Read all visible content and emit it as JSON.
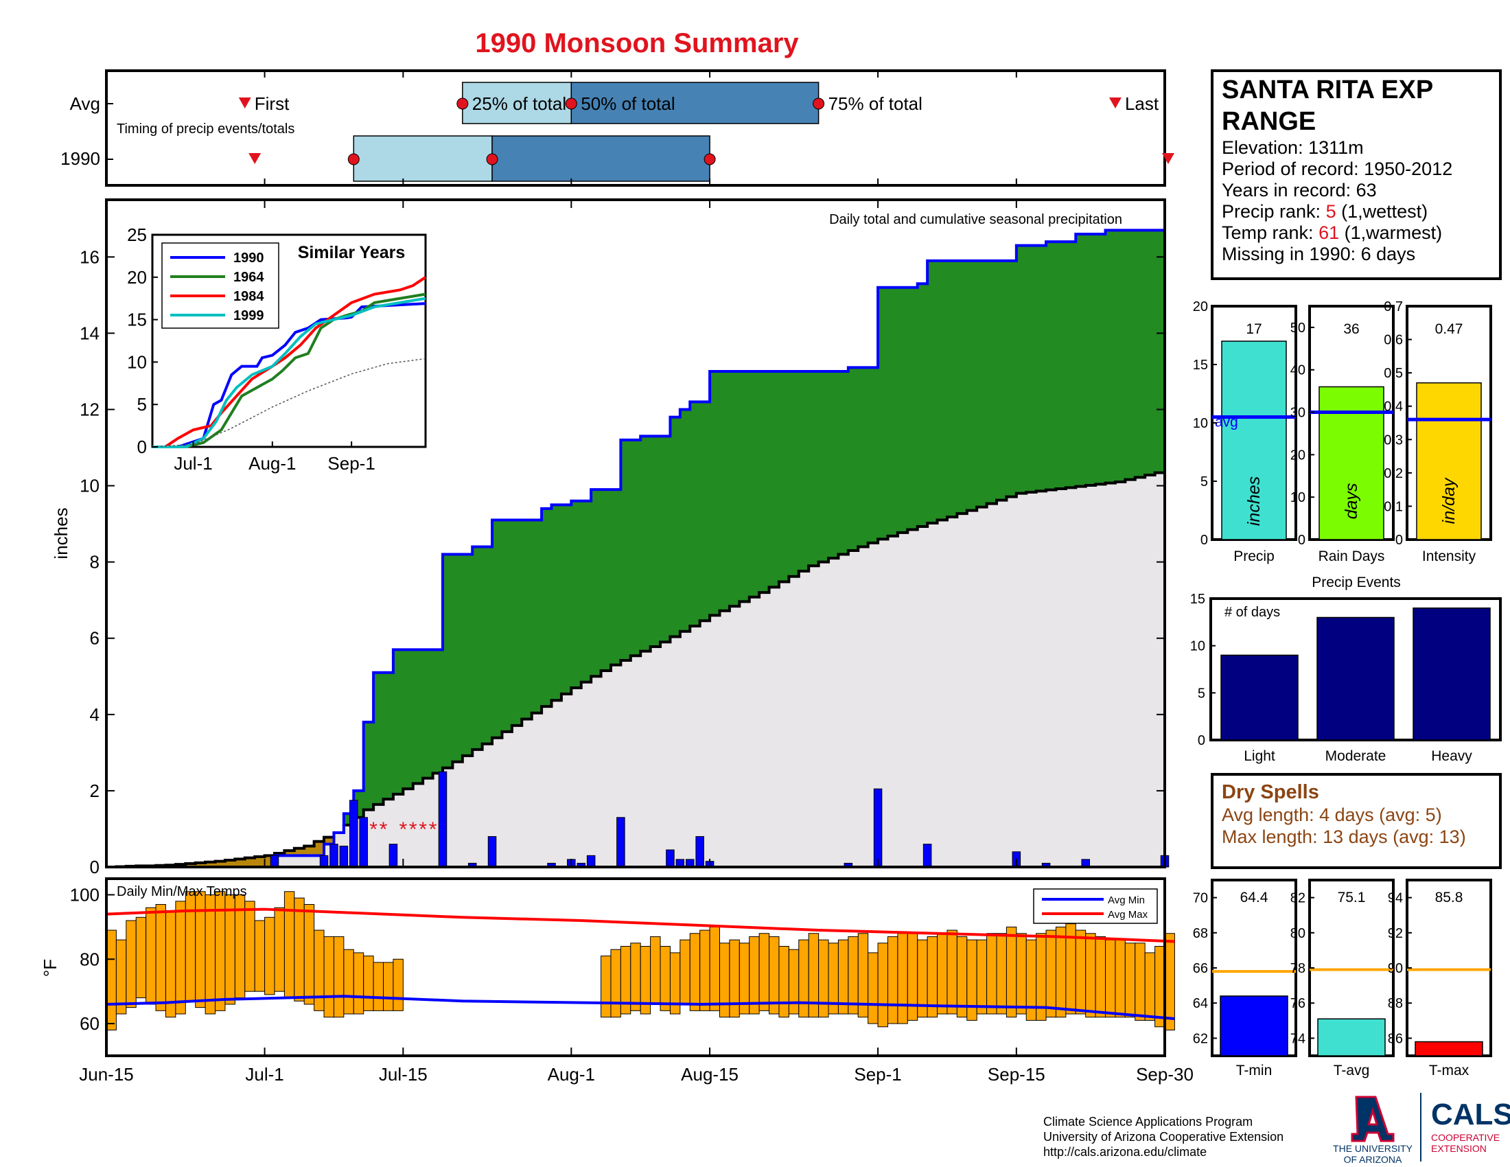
{
  "title": "1990 Monsoon Summary",
  "timing": {
    "row_labels": [
      "Avg",
      "1990"
    ],
    "subtitle": "Timing of precip events/totals",
    "avg": {
      "first": "2023-06-29",
      "q25": "2023-07-21",
      "q50": "2023-08-01",
      "q75": "2023-08-26",
      "last": "2023-09-25"
    },
    "y1990": {
      "first": "2023-06-30",
      "q25": "2023-07-10",
      "q50": "2023-07-24",
      "q75": "2023-08-15",
      "last": "2023-10-01"
    },
    "labels": {
      "first": "First",
      "q25": "25% of total",
      "q50": "50% of total",
      "q75": "75% of total",
      "last": "Last"
    },
    "colors": {
      "light": "#add8e6",
      "dark": "#4682b4",
      "marker": "#e0141e"
    }
  },
  "station": {
    "name_line1": "SANTA RITA EXP",
    "name_line2": "RANGE",
    "elevation": "Elevation: 1311m",
    "period": "Period of record: 1950-2012",
    "years": "Years in record: 63",
    "precip_rank_prefix": "Precip rank: ",
    "precip_rank_value": "5",
    "precip_rank_suffix": " (1,wettest)",
    "temp_rank_prefix": "Temp rank: ",
    "temp_rank_value": "61",
    "temp_rank_suffix": " (1,warmest)",
    "missing": "Missing in 1990: 6 days"
  },
  "main_chart": {
    "annotation": "Daily total and cumulative seasonal precipitation",
    "ylabel": "inches",
    "ylim": [
      0,
      17.5
    ],
    "yticks": [
      0,
      2,
      4,
      6,
      8,
      10,
      12,
      14,
      16
    ],
    "missing_marker": "*",
    "colors": {
      "cumulative_1990": "#0000ff",
      "above_avg_fill": "#228b22",
      "below_avg_fill": "#b8860b",
      "avg_fill": "#e8e6e8",
      "daily_bar": "#0000ff",
      "missing": "#e0141e"
    }
  },
  "chart_data": {
    "type": "area",
    "x_range": [
      "Jun-15",
      "Sep-30"
    ],
    "x_tick_labels": [
      "Jun-15",
      "Jul-1",
      "Jul-15",
      "Aug-1",
      "Aug-15",
      "Sep-1",
      "Sep-15",
      "Sep-30"
    ],
    "cumulative_1990": [
      {
        "x": "Jul-1",
        "y": 0.0
      },
      {
        "x": "Jul-2",
        "y": 0.3
      },
      {
        "x": "Jul-7",
        "y": 0.6
      },
      {
        "x": "Jul-8",
        "y": 0.9
      },
      {
        "x": "Jul-9",
        "y": 1.4
      },
      {
        "x": "Jul-10",
        "y": 2.0
      },
      {
        "x": "Jul-11",
        "y": 3.8
      },
      {
        "x": "Jul-12",
        "y": 5.1
      },
      {
        "x": "Jul-14",
        "y": 5.7
      },
      {
        "x": "Jul-19",
        "y": 8.2
      },
      {
        "x": "Jul-22",
        "y": 8.4
      },
      {
        "x": "Jul-24",
        "y": 9.1
      },
      {
        "x": "Jul-29",
        "y": 9.4
      },
      {
        "x": "Jul-30",
        "y": 9.5
      },
      {
        "x": "Aug-1",
        "y": 9.6
      },
      {
        "x": "Aug-3",
        "y": 9.9
      },
      {
        "x": "Aug-6",
        "y": 11.2
      },
      {
        "x": "Aug-8",
        "y": 11.3
      },
      {
        "x": "Aug-11",
        "y": 11.8
      },
      {
        "x": "Aug-12",
        "y": 12.0
      },
      {
        "x": "Aug-13",
        "y": 12.2
      },
      {
        "x": "Aug-15",
        "y": 13.0
      },
      {
        "x": "Aug-29",
        "y": 13.1
      },
      {
        "x": "Aug-30",
        "y": 13.1
      },
      {
        "x": "Sep-1",
        "y": 15.2
      },
      {
        "x": "Sep-5",
        "y": 15.3
      },
      {
        "x": "Sep-6",
        "y": 15.9
      },
      {
        "x": "Sep-15",
        "y": 16.3
      },
      {
        "x": "Sep-18",
        "y": 16.4
      },
      {
        "x": "Sep-21",
        "y": 16.6
      },
      {
        "x": "Sep-24",
        "y": 16.7
      },
      {
        "x": "Sep-30",
        "y": 16.9
      }
    ],
    "cumulative_average": [
      {
        "x": "Jun-15",
        "y": 0.0
      },
      {
        "x": "Jun-21",
        "y": 0.05
      },
      {
        "x": "Jun-26",
        "y": 0.15
      },
      {
        "x": "Jul-1",
        "y": 0.3
      },
      {
        "x": "Jul-5",
        "y": 0.55
      },
      {
        "x": "Jul-8",
        "y": 0.9
      },
      {
        "x": "Jul-11",
        "y": 1.5
      },
      {
        "x": "Jul-15",
        "y": 2.05
      },
      {
        "x": "Jul-19",
        "y": 2.6
      },
      {
        "x": "Jul-25",
        "y": 3.55
      },
      {
        "x": "Aug-1",
        "y": 4.7
      },
      {
        "x": "Aug-5",
        "y": 5.3
      },
      {
        "x": "Aug-10",
        "y": 5.9
      },
      {
        "x": "Aug-15",
        "y": 6.6
      },
      {
        "x": "Aug-20",
        "y": 7.2
      },
      {
        "x": "Aug-25",
        "y": 7.9
      },
      {
        "x": "Sep-1",
        "y": 8.6
      },
      {
        "x": "Sep-10",
        "y": 9.35
      },
      {
        "x": "Sep-15",
        "y": 9.8
      },
      {
        "x": "Sep-20",
        "y": 9.95
      },
      {
        "x": "Sep-25",
        "y": 10.1
      },
      {
        "x": "Sep-30",
        "y": 10.4
      }
    ],
    "daily_precip": [
      {
        "x": "Jul-2",
        "y": 0.3
      },
      {
        "x": "Jul-7",
        "y": 0.3
      },
      {
        "x": "Jul-8",
        "y": 0.6
      },
      {
        "x": "Jul-9",
        "y": 0.55
      },
      {
        "x": "Jul-10",
        "y": 1.75
      },
      {
        "x": "Jul-11",
        "y": 1.3
      },
      {
        "x": "Jul-14",
        "y": 0.6
      },
      {
        "x": "Jul-19",
        "y": 2.5
      },
      {
        "x": "Jul-22",
        "y": 0.1
      },
      {
        "x": "Jul-24",
        "y": 0.8
      },
      {
        "x": "Jul-30",
        "y": 0.1
      },
      {
        "x": "Aug-1",
        "y": 0.2
      },
      {
        "x": "Aug-2",
        "y": 0.1
      },
      {
        "x": "Aug-3",
        "y": 0.3
      },
      {
        "x": "Aug-6",
        "y": 1.3
      },
      {
        "x": "Aug-11",
        "y": 0.45
      },
      {
        "x": "Aug-12",
        "y": 0.2
      },
      {
        "x": "Aug-13",
        "y": 0.2
      },
      {
        "x": "Aug-14",
        "y": 0.8
      },
      {
        "x": "Aug-15",
        "y": 0.15
      },
      {
        "x": "Aug-29",
        "y": 0.1
      },
      {
        "x": "Sep-1",
        "y": 2.05
      },
      {
        "x": "Sep-6",
        "y": 0.6
      },
      {
        "x": "Sep-15",
        "y": 0.4
      },
      {
        "x": "Sep-18",
        "y": 0.1
      },
      {
        "x": "Sep-22",
        "y": 0.2
      },
      {
        "x": "Sep-30",
        "y": 0.3
      }
    ],
    "missing_days": [
      "Jul-12",
      "Jul-13",
      "Jul-15",
      "Jul-16",
      "Jul-17",
      "Jul-18"
    ]
  },
  "similar_years": {
    "title": "Similar Years",
    "xticks": [
      "Jul-1",
      "Aug-1",
      "Sep-1"
    ],
    "yticks": [
      0,
      5,
      10,
      15,
      20,
      25
    ],
    "ylim": [
      0,
      25
    ],
    "legend": [
      {
        "name": "1990",
        "color": "#0000ff"
      },
      {
        "name": "1964",
        "color": "#1f7f1f"
      },
      {
        "name": "1984",
        "color": "#ff0000"
      },
      {
        "name": "1999",
        "color": "#00bfbf"
      }
    ],
    "series": [
      {
        "name": "1990",
        "points": [
          [
            "Jun-15",
            0
          ],
          [
            "Jun-25",
            0
          ],
          [
            "Jul-5",
            1
          ],
          [
            "Jul-9",
            5
          ],
          [
            "Jul-12",
            5.5
          ],
          [
            "Jul-16",
            8.5
          ],
          [
            "Jul-20",
            9.5
          ],
          [
            "Jul-26",
            9.5
          ],
          [
            "Jul-28",
            10.5
          ],
          [
            "Aug-1",
            10.8
          ],
          [
            "Aug-6",
            12
          ],
          [
            "Aug-10",
            13.5
          ],
          [
            "Aug-15",
            14
          ],
          [
            "Aug-20",
            15
          ],
          [
            "Aug-30",
            15.2
          ],
          [
            "Sep-1",
            15.3
          ],
          [
            "Sep-5",
            16.5
          ],
          [
            "Sep-30",
            16.9
          ]
        ]
      },
      {
        "name": "1964",
        "points": [
          [
            "Jun-15",
            0
          ],
          [
            "Jun-28",
            0
          ],
          [
            "Jul-5",
            0.5
          ],
          [
            "Jul-12",
            2
          ],
          [
            "Jul-16",
            4
          ],
          [
            "Jul-20",
            6
          ],
          [
            "Jul-26",
            7
          ],
          [
            "Aug-1",
            8
          ],
          [
            "Aug-5",
            9
          ],
          [
            "Aug-10",
            10.5
          ],
          [
            "Aug-15",
            11
          ],
          [
            "Aug-20",
            14
          ],
          [
            "Aug-25",
            15
          ],
          [
            "Aug-30",
            15.5
          ],
          [
            "Sep-5",
            16
          ],
          [
            "Sep-10",
            17
          ],
          [
            "Sep-30",
            18
          ]
        ]
      },
      {
        "name": "1984",
        "points": [
          [
            "Jun-15",
            0
          ],
          [
            "Jun-20",
            0
          ],
          [
            "Jun-25",
            1
          ],
          [
            "Jul-1",
            2
          ],
          [
            "Jul-8",
            2.5
          ],
          [
            "Jul-12",
            4
          ],
          [
            "Jul-18",
            6
          ],
          [
            "Jul-24",
            8
          ],
          [
            "Aug-1",
            9.5
          ],
          [
            "Aug-6",
            10.5
          ],
          [
            "Aug-12",
            12
          ],
          [
            "Aug-18",
            14
          ],
          [
            "Aug-25",
            15.5
          ],
          [
            "Sep-1",
            17
          ],
          [
            "Sep-10",
            18
          ],
          [
            "Sep-20",
            18.5
          ],
          [
            "Sep-25",
            19
          ],
          [
            "Sep-30",
            20
          ]
        ]
      },
      {
        "name": "1999",
        "points": [
          [
            "Jun-15",
            0
          ],
          [
            "Jun-28",
            0
          ],
          [
            "Jul-5",
            1
          ],
          [
            "Jul-10",
            3
          ],
          [
            "Jul-14",
            5.5
          ],
          [
            "Jul-18",
            7
          ],
          [
            "Jul-24",
            8.5
          ],
          [
            "Aug-1",
            9.5
          ],
          [
            "Aug-6",
            11
          ],
          [
            "Aug-12",
            13
          ],
          [
            "Aug-18",
            14.5
          ],
          [
            "Aug-25",
            15
          ],
          [
            "Sep-1",
            15.5
          ],
          [
            "Sep-10",
            16.5
          ],
          [
            "Sep-20",
            17
          ],
          [
            "Sep-30",
            17.5
          ]
        ]
      },
      {
        "name": "average",
        "points": [
          [
            "Jun-15",
            0
          ],
          [
            "Jul-1",
            0.3
          ],
          [
            "Jul-15",
            2.05
          ],
          [
            "Aug-1",
            4.7
          ],
          [
            "Aug-15",
            6.6
          ],
          [
            "Sep-1",
            8.6
          ],
          [
            "Sep-15",
            9.8
          ],
          [
            "Sep-30",
            10.4
          ]
        ]
      }
    ]
  },
  "summary_bars": [
    {
      "value_label": "17",
      "value": 17,
      "avg": 10.5,
      "ymax": 20,
      "yticks": [
        0,
        5,
        10,
        15,
        20
      ],
      "unit": "inches",
      "xlabel": "Precip",
      "color": "#40e0d0",
      "avg_label": "avg"
    },
    {
      "value_label": "36",
      "value": 36,
      "avg": 30,
      "ymax": 55,
      "yticks": [
        0,
        10,
        20,
        30,
        40,
        50
      ],
      "unit": "days",
      "xlabel": "Rain Days",
      "color": "#7cfc00",
      "avg_label": ""
    },
    {
      "value_label": "0.47",
      "value": 0.47,
      "avg": 0.36,
      "ymax": 0.7,
      "yticks": [
        0,
        0.1,
        0.2,
        0.3,
        0.4,
        0.5,
        0.6,
        0.7
      ],
      "unit": "in/day",
      "xlabel": "Intensity",
      "color": "#ffd700",
      "avg_label": ""
    }
  ],
  "precip_events": {
    "title": "Precip Events",
    "ylabel_note": "# of days",
    "categories": [
      "Light",
      "Moderate",
      "Heavy"
    ],
    "values": [
      9,
      13,
      14
    ],
    "ylim": [
      0,
      15
    ],
    "yticks": [
      0,
      5,
      10,
      15
    ],
    "color": "#000080"
  },
  "dry_spells": {
    "title": "Dry Spells",
    "avg_length": "Avg length: 4 days (avg: 5)",
    "max_length": "Max length: 13 days (avg: 13)"
  },
  "temps": {
    "title": "Daily Min/Max Temps",
    "ylabel": "°F",
    "ylim": [
      50,
      105
    ],
    "yticks": [
      60,
      80,
      100
    ],
    "legend": [
      {
        "name": "Avg Min",
        "color": "#0000ff"
      },
      {
        "name": "Avg Max",
        "color": "#ff0000"
      }
    ],
    "bar_color": "#ffa500",
    "daily_min": [
      58,
      63,
      65,
      68,
      66,
      64,
      62,
      63,
      67,
      65,
      63,
      64,
      66,
      68,
      70,
      70,
      69,
      70,
      68,
      67,
      66,
      64,
      62,
      62,
      63,
      63,
      64,
      64,
      64,
      64,
      null,
      null,
      null,
      null,
      null,
      null,
      null,
      null,
      null,
      null,
      null,
      null,
      null,
      null,
      null,
      null,
      null,
      null,
      null,
      null,
      62,
      62,
      63,
      64,
      63,
      66,
      64,
      63,
      66,
      64,
      64,
      64,
      62,
      62,
      63,
      63,
      64,
      63,
      62,
      63,
      62,
      62,
      62,
      63,
      63,
      63,
      62,
      60,
      59,
      60,
      60,
      61,
      62,
      62,
      63,
      63,
      62,
      61,
      63,
      63,
      63,
      62,
      63,
      61,
      61,
      62,
      62,
      63,
      63,
      62,
      62,
      62,
      62,
      62,
      61,
      61,
      59,
      58
    ],
    "daily_max": [
      89,
      86,
      92,
      93,
      96,
      97,
      95,
      98,
      101,
      101,
      100,
      101,
      100,
      100,
      98,
      92,
      93,
      96,
      101,
      99,
      97,
      89,
      87,
      87,
      83,
      82,
      81,
      79,
      79,
      80,
      null,
      null,
      null,
      null,
      null,
      null,
      null,
      null,
      null,
      null,
      null,
      null,
      null,
      null,
      null,
      null,
      null,
      null,
      null,
      null,
      81,
      83,
      84,
      85,
      84,
      87,
      84,
      82,
      86,
      88,
      89,
      90,
      85,
      86,
      85,
      87,
      88,
      87,
      84,
      83,
      86,
      88,
      86,
      85,
      86,
      87,
      88,
      82,
      85,
      87,
      88,
      88,
      86,
      87,
      88,
      89,
      87,
      86,
      86,
      88,
      88,
      90,
      88,
      86,
      88,
      89,
      90,
      91,
      89,
      88,
      87,
      86,
      86,
      85,
      85,
      82,
      84,
      88
    ],
    "avg_min": [
      [
        0,
        66
      ],
      [
        6,
        66.5
      ],
      [
        12,
        67.5
      ],
      [
        24,
        68.5
      ],
      [
        36,
        67
      ],
      [
        60,
        66
      ],
      [
        70,
        66.5
      ],
      [
        84,
        65.5
      ],
      [
        95,
        65
      ],
      [
        108,
        61.5
      ]
    ],
    "avg_max": [
      [
        0,
        94
      ],
      [
        8,
        95
      ],
      [
        16,
        95.5
      ],
      [
        24,
        94.5
      ],
      [
        36,
        93
      ],
      [
        48,
        92
      ],
      [
        60,
        90.5
      ],
      [
        72,
        89
      ],
      [
        84,
        88
      ],
      [
        96,
        87
      ],
      [
        108,
        85.5
      ]
    ]
  },
  "temp_summary": [
    {
      "label": "T-min",
      "value_label": "64.4",
      "value": 64.4,
      "avg": 65.8,
      "ylim": [
        61,
        71
      ],
      "yticks": [
        62,
        64,
        66,
        68,
        70
      ],
      "color": "#0000ff"
    },
    {
      "label": "T-avg",
      "value_label": "75.1",
      "value": 75.1,
      "avg": 77.9,
      "ylim": [
        73,
        83
      ],
      "yticks": [
        74,
        76,
        78,
        80,
        82
      ],
      "color": "#40e0d0"
    },
    {
      "label": "T-max",
      "value_label": "85.8",
      "value": 85.8,
      "avg": 89.9,
      "ylim": [
        85,
        95
      ],
      "yticks": [
        86,
        88,
        90,
        92,
        94
      ],
      "color": "#ff0000"
    }
  ],
  "avg_line_color": "#ffa500",
  "footer": {
    "line1": "Climate Science Applications Program",
    "line2": "University of Arizona Cooperative Extension",
    "line3": "http://cals.arizona.edu/climate",
    "ua_line1": "THE UNIVERSITY",
    "ua_line2": "OF ARIZONA",
    "cals": "CALS",
    "cals_sub1": "COOPERATIVE",
    "cals_sub2": "EXTENSION"
  }
}
